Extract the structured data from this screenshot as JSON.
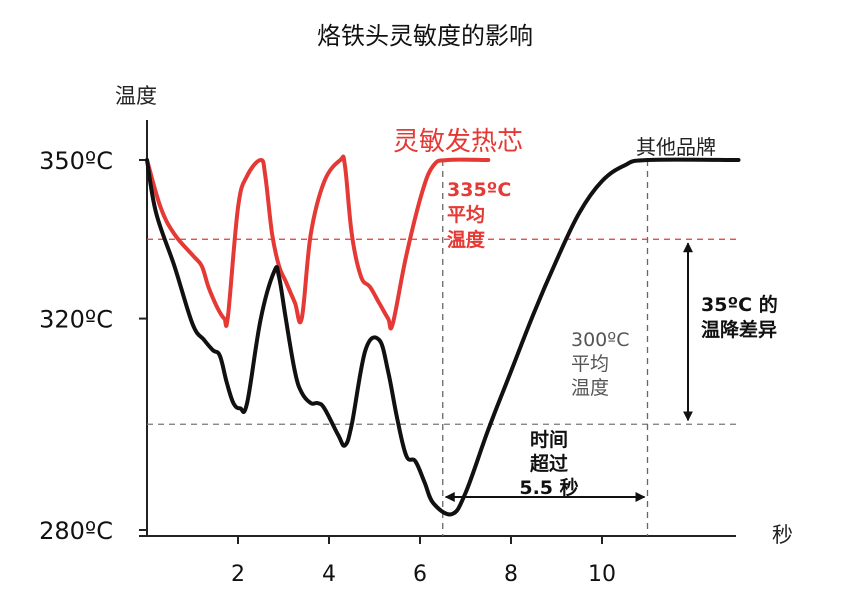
{
  "chart_data": {
    "type": "line",
    "title": "烙铁头灵敏度的影响",
    "ylabel": "温度",
    "xlabel": "秒",
    "xlim": [
      0,
      13
    ],
    "ylim": [
      280,
      355
    ],
    "x_ticks": [
      {
        "value": 2,
        "label": "2"
      },
      {
        "value": 4,
        "label": "4"
      },
      {
        "value": 6,
        "label": "6"
      },
      {
        "value": 8,
        "label": "8"
      },
      {
        "value": 10,
        "label": "10"
      }
    ],
    "y_ticks": [
      {
        "value": 350,
        "label": "350ºC"
      },
      {
        "value": 320,
        "label": "320ºC"
      },
      {
        "value": 280,
        "label": "280ºC"
      }
    ],
    "series": [
      {
        "name": "灵敏发热芯",
        "color": "#e53935",
        "points": [
          [
            0,
            350
          ],
          [
            0.3,
            341
          ],
          [
            0.6,
            336
          ],
          [
            1.0,
            332
          ],
          [
            1.2,
            330
          ],
          [
            1.35,
            326
          ],
          [
            1.55,
            322
          ],
          [
            1.7,
            320
          ],
          [
            1.78,
            320.5
          ],
          [
            2.0,
            341
          ],
          [
            2.2,
            347
          ],
          [
            2.5,
            350
          ],
          [
            2.6,
            347
          ],
          [
            2.75,
            336
          ],
          [
            2.9,
            330
          ],
          [
            3.05,
            327
          ],
          [
            3.25,
            323
          ],
          [
            3.4,
            320
          ],
          [
            3.6,
            336
          ],
          [
            3.9,
            346
          ],
          [
            4.25,
            350
          ],
          [
            4.35,
            349
          ],
          [
            4.5,
            336
          ],
          [
            4.7,
            328
          ],
          [
            4.9,
            326
          ],
          [
            5.1,
            323
          ],
          [
            5.3,
            320
          ],
          [
            5.4,
            319
          ],
          [
            5.7,
            332
          ],
          [
            6.05,
            344
          ],
          [
            6.3,
            349
          ],
          [
            6.6,
            350
          ],
          [
            7.5,
            350
          ]
        ]
      },
      {
        "name": "其他品牌",
        "color": "#111111",
        "points": [
          [
            0,
            350
          ],
          [
            0.2,
            340
          ],
          [
            0.6,
            330
          ],
          [
            1.0,
            319
          ],
          [
            1.25,
            316
          ],
          [
            1.45,
            314
          ],
          [
            1.6,
            313
          ],
          [
            1.75,
            308
          ],
          [
            1.9,
            304
          ],
          [
            2.05,
            303
          ],
          [
            2.2,
            304
          ],
          [
            2.5,
            320
          ],
          [
            2.8,
            329
          ],
          [
            2.9,
            328
          ],
          [
            3.05,
            320
          ],
          [
            3.25,
            310
          ],
          [
            3.4,
            306
          ],
          [
            3.6,
            304
          ],
          [
            3.75,
            304
          ],
          [
            3.9,
            303
          ],
          [
            4.2,
            298
          ],
          [
            4.35,
            296
          ],
          [
            4.5,
            300
          ],
          [
            4.8,
            314
          ],
          [
            5.1,
            316
          ],
          [
            5.3,
            310
          ],
          [
            5.5,
            301
          ],
          [
            5.7,
            294
          ],
          [
            5.9,
            293
          ],
          [
            6.1,
            289
          ],
          [
            6.3,
            285
          ],
          [
            6.7,
            283
          ],
          [
            7.0,
            287
          ],
          [
            7.5,
            299
          ],
          [
            8.0,
            310
          ],
          [
            8.5,
            321
          ],
          [
            9.0,
            331
          ],
          [
            9.5,
            340
          ],
          [
            10.0,
            346
          ],
          [
            10.5,
            349
          ],
          [
            11.0,
            350
          ],
          [
            13.0,
            350
          ]
        ]
      }
    ],
    "reference_lines": [
      {
        "value": 335,
        "color": "#e53935",
        "style": "dashed"
      },
      {
        "value": 300,
        "color": "#777777",
        "style": "dashed"
      }
    ],
    "vertical_refs": [
      6.5,
      11.0
    ],
    "annotations": {
      "red_avg": [
        "335ºC",
        "平均",
        "温度"
      ],
      "black_avg": [
        "300ºC",
        "平均",
        "温度"
      ],
      "diff": [
        "35ºC 的",
        "温降差异"
      ],
      "time": [
        "时间",
        "超过",
        "5.5 秒"
      ]
    }
  }
}
